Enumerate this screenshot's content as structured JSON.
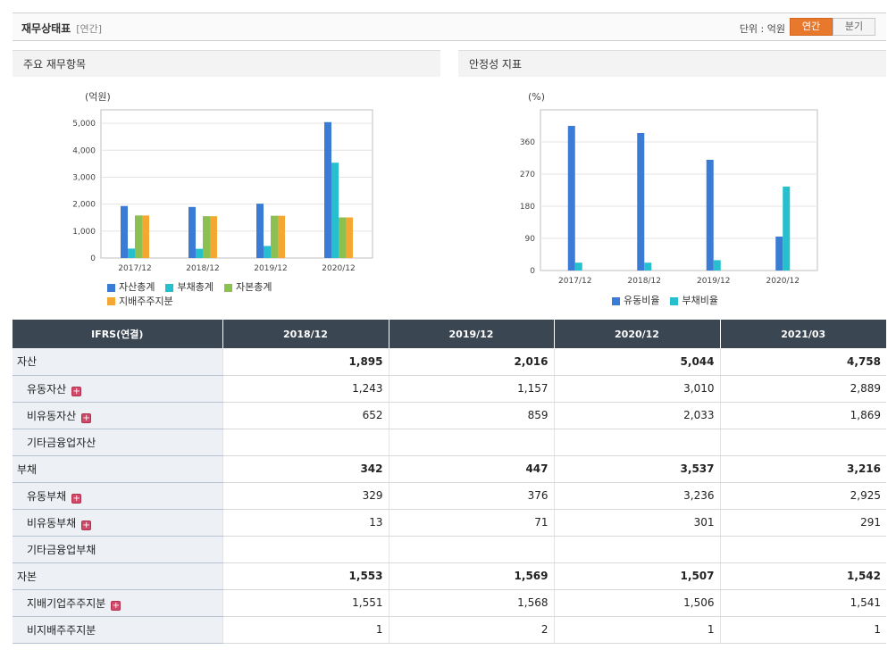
{
  "header": {
    "title": "재무상태표",
    "period": "[연간]",
    "unit_label": "단위 : 억원",
    "toggle": [
      {
        "label": "연간",
        "active": true
      },
      {
        "label": "분기",
        "active": false
      }
    ]
  },
  "panels": {
    "left_title": "주요 재무항목",
    "right_title": "안정성 지표"
  },
  "chart_data": [
    {
      "type": "bar",
      "unit": "(억원)",
      "categories": [
        "2017/12",
        "2018/12",
        "2019/12",
        "2020/12"
      ],
      "ylim": [
        0,
        5500
      ],
      "yticks": [
        "0",
        "1,000",
        "2,000",
        "3,000",
        "4,000",
        "5,000"
      ],
      "grid": true,
      "legend_position": "bottom",
      "series": [
        {
          "name": "자산총계",
          "color": "#3a7bd5",
          "values": [
            1930,
            1895,
            2016,
            5044
          ]
        },
        {
          "name": "부채총계",
          "color": "#26bfce",
          "values": [
            350,
            342,
            447,
            3537
          ]
        },
        {
          "name": "자본총계",
          "color": "#8cc152",
          "values": [
            1580,
            1553,
            1569,
            1507
          ]
        },
        {
          "name": "지배주주지분",
          "color": "#f5a733",
          "values": [
            1578,
            1551,
            1568,
            1506
          ]
        }
      ]
    },
    {
      "type": "bar",
      "unit": "(%)",
      "categories": [
        "2017/12",
        "2018/12",
        "2019/12",
        "2020/12"
      ],
      "ylim": [
        0,
        450
      ],
      "yticks": [
        "0",
        "90",
        "180",
        "270",
        "360"
      ],
      "grid": true,
      "legend_position": "bottom",
      "series": [
        {
          "name": "유동비율",
          "color": "#3a7bd5",
          "values": [
            405,
            385,
            310,
            95
          ]
        },
        {
          "name": "부채비율",
          "color": "#26bfce",
          "values": [
            22,
            22,
            29,
            235
          ]
        }
      ]
    }
  ],
  "table": {
    "header": [
      "IFRS(연결)",
      "2018/12",
      "2019/12",
      "2020/12",
      "2021/03"
    ],
    "rows": [
      {
        "label": "자산",
        "sub": false,
        "expand": false,
        "values": [
          "1,895",
          "2,016",
          "5,044",
          "4,758"
        ]
      },
      {
        "label": "유동자산",
        "sub": true,
        "expand": true,
        "values": [
          "1,243",
          "1,157",
          "3,010",
          "2,889"
        ]
      },
      {
        "label": "비유동자산",
        "sub": true,
        "expand": true,
        "values": [
          "652",
          "859",
          "2,033",
          "1,869"
        ]
      },
      {
        "label": "기타금융업자산",
        "sub": true,
        "expand": false,
        "values": [
          "",
          "",
          "",
          ""
        ]
      },
      {
        "label": "부채",
        "sub": false,
        "expand": false,
        "values": [
          "342",
          "447",
          "3,537",
          "3,216"
        ]
      },
      {
        "label": "유동부채",
        "sub": true,
        "expand": true,
        "values": [
          "329",
          "376",
          "3,236",
          "2,925"
        ]
      },
      {
        "label": "비유동부채",
        "sub": true,
        "expand": true,
        "values": [
          "13",
          "71",
          "301",
          "291"
        ]
      },
      {
        "label": "기타금융업부채",
        "sub": true,
        "expand": false,
        "values": [
          "",
          "",
          "",
          ""
        ]
      },
      {
        "label": "자본",
        "sub": false,
        "expand": false,
        "values": [
          "1,553",
          "1,569",
          "1,507",
          "1,542"
        ]
      },
      {
        "label": "지배기업주주지분",
        "sub": true,
        "expand": true,
        "values": [
          "1,551",
          "1,568",
          "1,506",
          "1,541"
        ]
      },
      {
        "label": "비지배주주지분",
        "sub": true,
        "expand": false,
        "values": [
          "1",
          "2",
          "1",
          "1"
        ]
      }
    ]
  }
}
